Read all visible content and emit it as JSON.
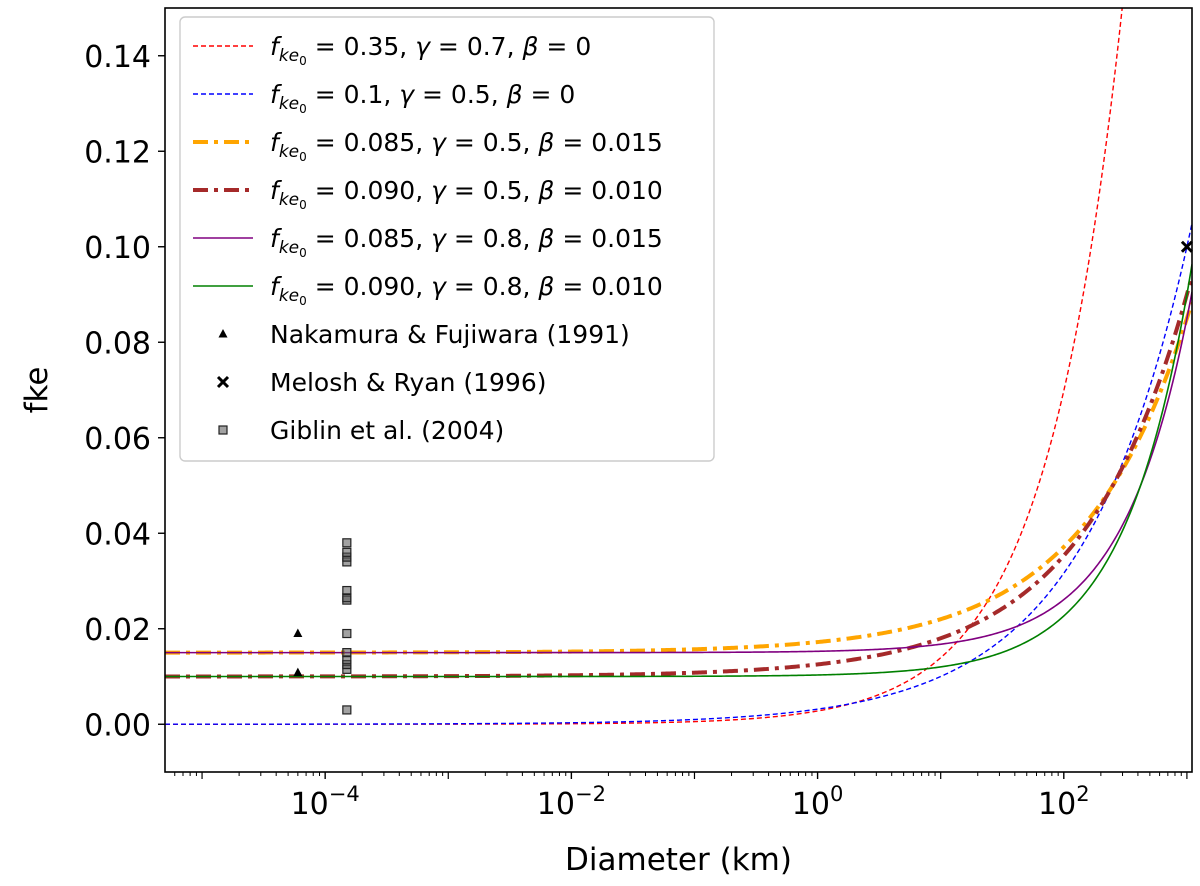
{
  "chart_data": {
    "type": "line",
    "xlabel": "Diameter (km)",
    "ylabel": "fke",
    "xscale": "log",
    "xlim": [
      5e-06,
      1100
    ],
    "ylim": [
      -0.01,
      0.15
    ],
    "yticks": [
      "0.00",
      "0.02",
      "0.04",
      "0.06",
      "0.08",
      "0.10",
      "0.12",
      "0.14"
    ],
    "xticks": [
      {
        "base": "10",
        "exp": "−4",
        "value": 0.0001
      },
      {
        "base": "10",
        "exp": "−2",
        "value": 0.01
      },
      {
        "base": "10",
        "exp": "0",
        "value": 1
      },
      {
        "base": "10",
        "exp": "2",
        "value": 100
      }
    ],
    "legend_position": "upper-left",
    "series": [
      {
        "name": "f_ke0 = 0.35, γ = 0.7, β = 0",
        "legend_value": "0.35",
        "gamma_label": "0.7",
        "beta_label": "0",
        "f0": 0.35,
        "gamma": 0.7,
        "beta": 0,
        "color": "#ff0000",
        "style": "dashed",
        "width": 1.4
      },
      {
        "name": "f_ke0 = 0.1, γ = 0.5, β = 0",
        "legend_value": "0.1",
        "gamma_label": "0.5",
        "beta_label": "0",
        "f0": 0.1,
        "gamma": 0.5,
        "beta": 0,
        "color": "#0000ff",
        "style": "dashed",
        "width": 1.4
      },
      {
        "name": "f_ke0 = 0.085, γ = 0.5, β = 0.015",
        "legend_value": "0.085",
        "gamma_label": "0.5",
        "beta_label": "0.015",
        "f0": 0.085,
        "gamma": 0.5,
        "beta": 0.015,
        "color": "#ffa500",
        "style": "dashdot",
        "width": 4
      },
      {
        "name": "f_ke0 = 0.090, γ = 0.5, β = 0.010",
        "legend_value": "0.090",
        "gamma_label": "0.5",
        "beta_label": "0.010",
        "f0": 0.09,
        "gamma": 0.5,
        "beta": 0.01,
        "color": "#a52a2a",
        "style": "dashdot",
        "width": 4
      },
      {
        "name": "f_ke0 = 0.085, γ = 0.8, β = 0.015",
        "legend_value": "0.085",
        "gamma_label": "0.8",
        "beta_label": "0.015",
        "f0": 0.085,
        "gamma": 0.8,
        "beta": 0.015,
        "color": "#800080",
        "style": "solid",
        "width": 1.6
      },
      {
        "name": "f_ke0 = 0.090, γ = 0.8, β = 0.010",
        "legend_value": "0.090",
        "gamma_label": "0.8",
        "beta_label": "0.010",
        "f0": 0.09,
        "gamma": 0.8,
        "beta": 0.01,
        "color": "#008000",
        "style": "solid",
        "width": 1.6
      }
    ],
    "model_reference_diameter_km": 1000,
    "scatter": [
      {
        "name": "Nakamura & Fujiwara (1991)",
        "marker": "triangle",
        "color": "#000000",
        "points": [
          [
            6e-05,
            0.019
          ],
          [
            6e-05,
            0.0108
          ]
        ]
      },
      {
        "name": "Melosh & Ryan (1996)",
        "marker": "x",
        "color": "#000000",
        "points": [
          [
            1000,
            0.1
          ]
        ]
      },
      {
        "name": "Giblin et al. (2004)",
        "marker": "square",
        "color": "#555555",
        "points": [
          [
            0.00015,
            0.003
          ],
          [
            0.00015,
            0.0115
          ],
          [
            0.00015,
            0.0125
          ],
          [
            0.00015,
            0.0135
          ],
          [
            0.00015,
            0.015
          ],
          [
            0.00015,
            0.019
          ],
          [
            0.00015,
            0.026
          ],
          [
            0.00015,
            0.0265
          ],
          [
            0.00015,
            0.028
          ],
          [
            0.00015,
            0.034
          ],
          [
            0.00015,
            0.035
          ],
          [
            0.00015,
            0.036
          ],
          [
            0.00015,
            0.038
          ]
        ]
      }
    ]
  }
}
